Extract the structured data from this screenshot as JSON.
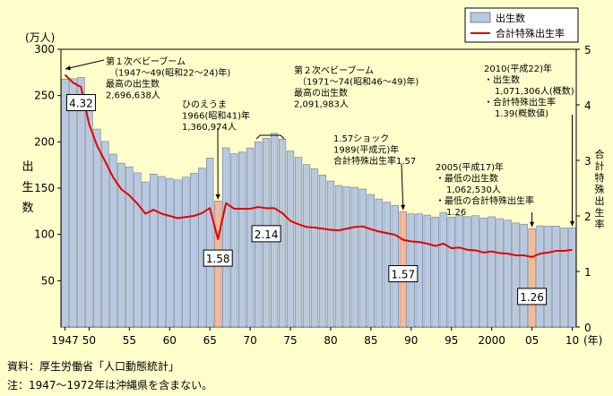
{
  "chart_data": {
    "type": "bar",
    "x": [
      1947,
      1948,
      1949,
      1950,
      1951,
      1952,
      1953,
      1954,
      1955,
      1956,
      1957,
      1958,
      1959,
      1960,
      1961,
      1962,
      1963,
      1964,
      1965,
      1966,
      1967,
      1968,
      1969,
      1970,
      1971,
      1972,
      1973,
      1974,
      1975,
      1976,
      1977,
      1978,
      1979,
      1980,
      1981,
      1982,
      1983,
      1984,
      1985,
      1986,
      1987,
      1988,
      1989,
      1990,
      1991,
      1992,
      1993,
      1994,
      1995,
      1996,
      1997,
      1998,
      1999,
      2000,
      2001,
      2002,
      2003,
      2004,
      2005,
      2006,
      2007,
      2008,
      2009,
      2010
    ],
    "x_tick_values": [
      1947,
      1950,
      1955,
      1960,
      1965,
      1970,
      1975,
      1980,
      1985,
      1990,
      1995,
      2000,
      2005,
      2010
    ],
    "x_tick_labels": [
      "1947",
      "50",
      "55",
      "60",
      "65",
      "70",
      "75",
      "80",
      "85",
      "90",
      "95",
      "2000",
      "05",
      "10"
    ],
    "x_unit": "(年)",
    "series": [
      {
        "name": "出生数",
        "axis": "left",
        "style": "bar",
        "color": "#b8c8e0",
        "highlight_color": "#f4b89a",
        "highlight_years": [
          1966,
          1989,
          2005
        ],
        "values": [
          267.9,
          268.2,
          269.7,
          233.8,
          213.8,
          200.5,
          186.8,
          177.0,
          173.1,
          166.5,
          156.7,
          165.3,
          162.6,
          160.6,
          158.9,
          161.9,
          166.0,
          171.7,
          182.4,
          136.1,
          193.6,
          187.2,
          188.9,
          193.4,
          200.1,
          203.9,
          209.2,
          203.0,
          190.1,
          183.3,
          175.5,
          170.9,
          164.2,
          157.7,
          152.9,
          151.5,
          150.9,
          149.0,
          143.2,
          138.3,
          134.7,
          131.4,
          124.7,
          122.2,
          122.3,
          120.9,
          118.8,
          123.8,
          118.7,
          120.7,
          119.2,
          120.3,
          117.8,
          119.1,
          117.1,
          115.4,
          112.4,
          111.1,
          106.3,
          109.3,
          109.0,
          109.1,
          107.0,
          107.1
        ]
      },
      {
        "name": "合計特殊出生率",
        "axis": "right",
        "style": "line",
        "color": "#e60000",
        "values": [
          4.54,
          4.4,
          4.32,
          3.65,
          3.26,
          2.98,
          2.69,
          2.48,
          2.37,
          2.22,
          2.04,
          2.11,
          2.04,
          2.0,
          1.96,
          1.98,
          2.0,
          2.05,
          2.14,
          1.58,
          2.23,
          2.13,
          2.13,
          2.13,
          2.16,
          2.14,
          2.14,
          2.05,
          1.91,
          1.85,
          1.8,
          1.79,
          1.77,
          1.75,
          1.74,
          1.77,
          1.8,
          1.81,
          1.76,
          1.72,
          1.69,
          1.66,
          1.57,
          1.54,
          1.53,
          1.5,
          1.46,
          1.5,
          1.42,
          1.43,
          1.39,
          1.38,
          1.34,
          1.36,
          1.33,
          1.32,
          1.29,
          1.29,
          1.26,
          1.32,
          1.34,
          1.37,
          1.37,
          1.39
        ]
      }
    ],
    "y_left": {
      "label": [
        "出",
        "生",
        "数"
      ],
      "unit": "(万人)",
      "ylim": [
        0,
        300
      ],
      "ticks": [
        50,
        100,
        150,
        200,
        250,
        300
      ]
    },
    "y_right": {
      "label": [
        "合",
        "計",
        "特",
        "殊",
        "出",
        "生",
        "率"
      ],
      "ylim": [
        0,
        5
      ],
      "ticks": [
        0,
        1,
        2,
        3,
        4,
        5
      ]
    },
    "legend": {
      "position": "top-right",
      "items": [
        "出生数",
        "合計特殊出生率"
      ]
    },
    "value_labels": [
      {
        "year": 1949,
        "series": "合計特殊出生率",
        "text": "4.32"
      },
      {
        "year": 1966,
        "series": "合計特殊出生率",
        "text": "1.58"
      },
      {
        "year": 1972,
        "series": "合計特殊出生率",
        "text": "2.14"
      },
      {
        "year": 1989,
        "series": "合計特殊出生率",
        "text": "1.57"
      },
      {
        "year": 2005,
        "series": "合計特殊出生率",
        "text": "1.26"
      }
    ],
    "annotations": [
      {
        "id": "boom1",
        "lines": [
          "第１次ベビーブーム",
          "（1947〜49(昭和22〜24)年)",
          "最高の出生数",
          "2,696,638人"
        ]
      },
      {
        "id": "hinoeuma",
        "lines": [
          "ひのえうま",
          "1966(昭和41)年",
          "1,360,974人"
        ]
      },
      {
        "id": "boom2",
        "lines": [
          "第２次ベビーブーム",
          "（1971〜74(昭和46〜49)年)",
          "最高の出生数",
          "2,091,983人"
        ]
      },
      {
        "id": "shock",
        "lines": [
          "1.57ショック",
          "1989(平成元)年",
          "合計特殊出生率1.57"
        ]
      },
      {
        "id": "y2005",
        "lines": [
          "2005(平成17)年",
          "・最低の出生数",
          "1,062,530人",
          "・最低の合計特殊出生率",
          "1.26"
        ]
      },
      {
        "id": "y2010",
        "lines": [
          "2010(平成22)年",
          "・出生数",
          "1,071,306人(概数)",
          "・合計特殊出生率",
          "1.39(概数値)"
        ]
      }
    ]
  },
  "notes": {
    "source": "資料：厚生労働省「人口動態統計」",
    "note": "注：1947〜1972年は沖縄県を含まない。"
  }
}
